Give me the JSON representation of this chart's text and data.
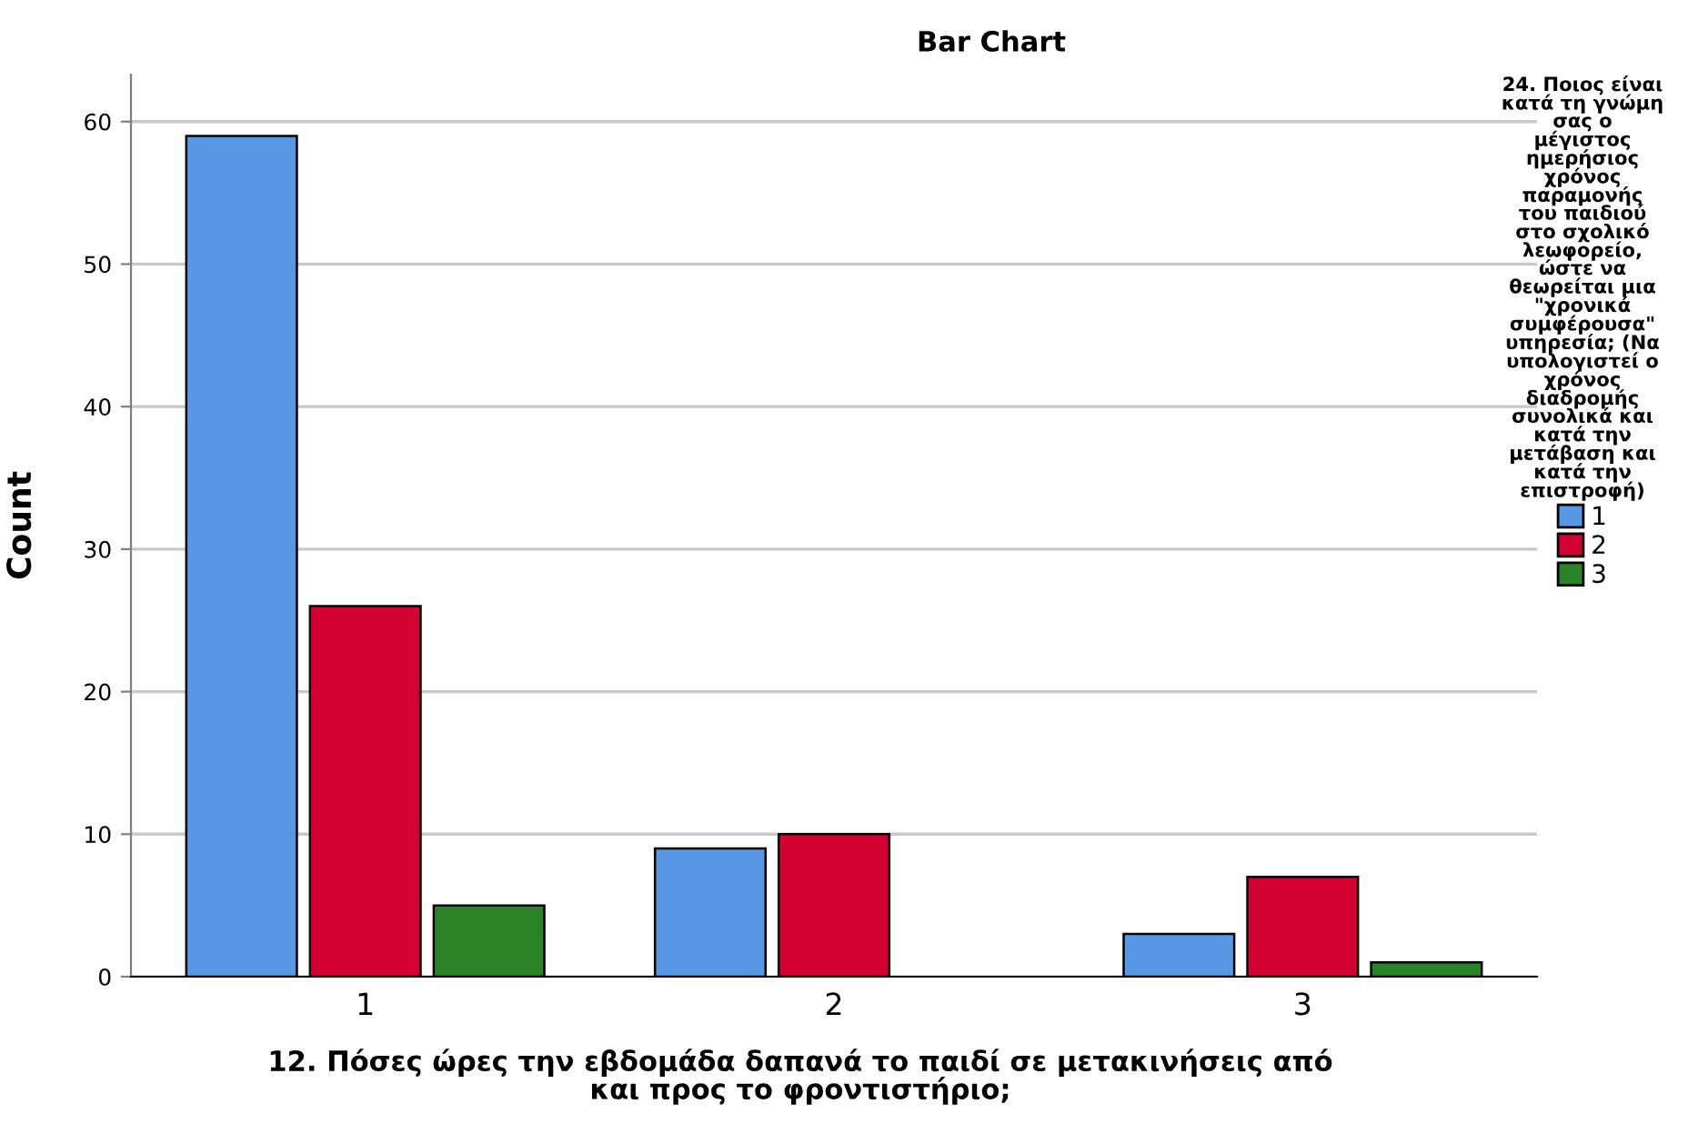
{
  "chart_data": {
    "type": "bar",
    "title": "Bar Chart",
    "xlabel": "12. Πόσες ώρες την εβδομάδα δαπανά το παιδί σε μετακινήσεις από\nκαι προς το φροντιστήριο;",
    "ylabel": "Count",
    "legend_title": "24. Ποιος είναι\nκατά τη γνώμη\nσας ο\nμέγιστος\nημερήσιος\nχρόνος\nπαραμονής\nτου παιδιού\nστο σχολικό\nλεωφορείο,\nώστε να\nθεωρείται μια\n\"χρονικά\nσυμφέρουσα\"\nυπηρεσία; (Να\nυπολογιστεί ο\nχρόνος\nδιαδρομής\nσυνολικά και\nκατά την\nμετάβαση και\nκατά την\nεπιστροφή)",
    "categories": [
      "1",
      "2",
      "3"
    ],
    "series": [
      {
        "name": "1",
        "color": "#5897e4",
        "values": [
          59,
          9,
          3
        ]
      },
      {
        "name": "2",
        "color": "#d50032",
        "values": [
          26,
          10,
          7
        ]
      },
      {
        "name": "3",
        "color": "#2a8427",
        "values": [
          5,
          null,
          1
        ]
      }
    ],
    "ylim": [
      0,
      63.3
    ],
    "yticks": [
      0,
      10,
      20,
      30,
      40,
      50,
      60
    ],
    "grid": "y",
    "legend": "right"
  }
}
